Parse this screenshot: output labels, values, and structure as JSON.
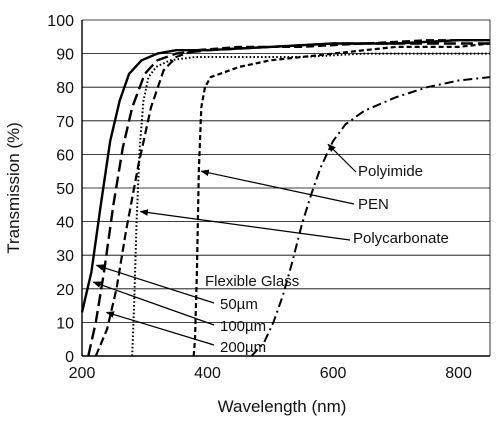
{
  "chart_data": {
    "type": "line",
    "xlabel": "Wavelength (nm)",
    "ylabel": "Transmission (%)",
    "xlim": [
      200,
      850
    ],
    "ylim": [
      0,
      100
    ],
    "xticks": [
      200,
      400,
      600,
      800
    ],
    "yticks": [
      0,
      10,
      20,
      30,
      40,
      50,
      60,
      70,
      80,
      90,
      100
    ],
    "grid": "horizontal",
    "colors": {
      "line": "#000000",
      "grid": "#000000",
      "background": "#ffffff"
    },
    "series": [
      {
        "name": "Flexible Glass 50µm",
        "style": "solid",
        "points": [
          [
            200,
            13
          ],
          [
            215,
            25
          ],
          [
            230,
            45
          ],
          [
            245,
            64
          ],
          [
            260,
            76
          ],
          [
            275,
            84
          ],
          [
            295,
            88
          ],
          [
            320,
            90
          ],
          [
            350,
            91
          ],
          [
            400,
            91
          ],
          [
            500,
            92
          ],
          [
            600,
            93
          ],
          [
            700,
            93
          ],
          [
            800,
            94
          ],
          [
            850,
            94
          ]
        ]
      },
      {
        "name": "Flexible Glass 100µm",
        "style": "longdash",
        "points": [
          [
            210,
            0
          ],
          [
            222,
            10
          ],
          [
            235,
            25
          ],
          [
            250,
            45
          ],
          [
            265,
            62
          ],
          [
            280,
            74
          ],
          [
            300,
            84
          ],
          [
            320,
            88
          ],
          [
            350,
            90
          ],
          [
            400,
            91
          ],
          [
            500,
            92
          ],
          [
            600,
            93
          ],
          [
            700,
            93
          ],
          [
            800,
            93
          ],
          [
            850,
            93
          ]
        ]
      },
      {
        "name": "Flexible Glass 200µm",
        "style": "dash",
        "points": [
          [
            222,
            0
          ],
          [
            240,
            8
          ],
          [
            255,
            20
          ],
          [
            270,
            37
          ],
          [
            290,
            57
          ],
          [
            310,
            74
          ],
          [
            330,
            85
          ],
          [
            350,
            89
          ],
          [
            380,
            91
          ],
          [
            450,
            92
          ],
          [
            550,
            92
          ],
          [
            650,
            93
          ],
          [
            750,
            94
          ],
          [
            850,
            94
          ]
        ]
      },
      {
        "name": "Polycarbonate",
        "style": "dotted",
        "points": [
          [
            280,
            0
          ],
          [
            283,
            15
          ],
          [
            287,
            40
          ],
          [
            292,
            62
          ],
          [
            298,
            76
          ],
          [
            306,
            83
          ],
          [
            318,
            86
          ],
          [
            340,
            88
          ],
          [
            380,
            89
          ],
          [
            450,
            89
          ],
          [
            550,
            89
          ],
          [
            650,
            90
          ],
          [
            750,
            90
          ],
          [
            850,
            90
          ]
        ]
      },
      {
        "name": "PEN",
        "style": "shortdash",
        "points": [
          [
            378,
            0
          ],
          [
            380,
            5
          ],
          [
            383,
            25
          ],
          [
            386,
            55
          ],
          [
            390,
            74
          ],
          [
            396,
            80
          ],
          [
            405,
            83
          ],
          [
            420,
            84
          ],
          [
            450,
            86
          ],
          [
            500,
            88
          ],
          [
            550,
            89
          ],
          [
            600,
            90
          ],
          [
            650,
            91
          ],
          [
            700,
            92
          ],
          [
            750,
            92
          ],
          [
            800,
            92
          ],
          [
            850,
            93
          ]
        ]
      },
      {
        "name": "Polyimide",
        "style": "dashdot",
        "points": [
          [
            470,
            0
          ],
          [
            490,
            4
          ],
          [
            505,
            10
          ],
          [
            520,
            18
          ],
          [
            535,
            28
          ],
          [
            550,
            39
          ],
          [
            565,
            48
          ],
          [
            580,
            56
          ],
          [
            600,
            64
          ],
          [
            620,
            69
          ],
          [
            650,
            73
          ],
          [
            700,
            77
          ],
          [
            750,
            80
          ],
          [
            800,
            82
          ],
          [
            850,
            83
          ]
        ]
      }
    ],
    "annotations": [
      {
        "text": "Polyimide",
        "arrow_to": [
          592,
          63
        ]
      },
      {
        "text": "PEN",
        "arrow_to": [
          390,
          55
        ]
      },
      {
        "text": "Polycarbonate",
        "arrow_to": [
          293,
          43
        ]
      },
      {
        "text": "Flexible Glass",
        "arrow_to": null
      },
      {
        "text": "50µm",
        "arrow_to": [
          223,
          27
        ]
      },
      {
        "text": "100µm",
        "arrow_to": [
          218,
          22
        ]
      },
      {
        "text": "200µm",
        "arrow_to": [
          239,
          13
        ]
      }
    ]
  }
}
